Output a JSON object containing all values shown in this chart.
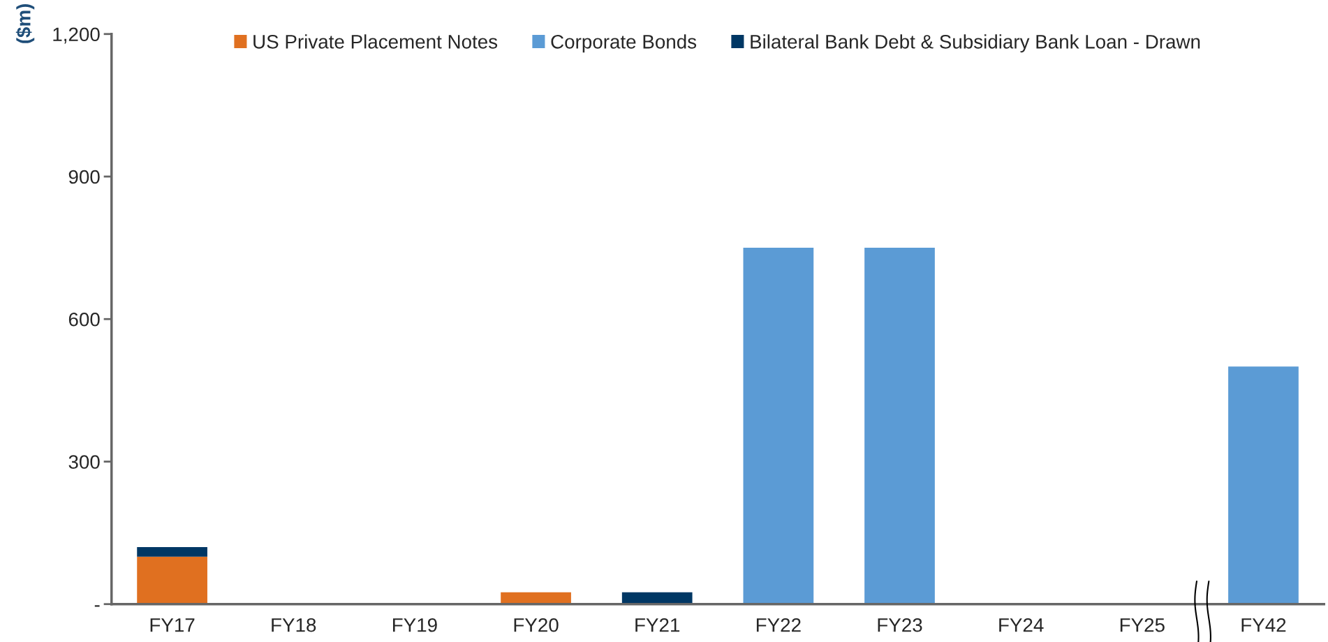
{
  "chart_data": {
    "type": "bar",
    "stacked": true,
    "ylabel": "($m)",
    "categories": [
      "FY17",
      "FY18",
      "FY19",
      "FY20",
      "FY21",
      "FY22",
      "FY23",
      "FY24",
      "FY25",
      "FY42"
    ],
    "series": [
      {
        "name": "US Private Placement Notes",
        "color": "#e07020",
        "values": [
          100,
          null,
          null,
          25,
          null,
          null,
          null,
          null,
          null,
          null
        ]
      },
      {
        "name": "Corporate Bonds",
        "color": "#5b9bd5",
        "values": [
          null,
          null,
          null,
          null,
          null,
          750,
          750,
          null,
          null,
          500
        ]
      },
      {
        "name": "Bilateral Bank Debt & Subsidiary Bank Loan - Drawn",
        "color": "#003764",
        "values": [
          20,
          null,
          null,
          null,
          25,
          null,
          null,
          null,
          null,
          null
        ]
      }
    ],
    "ylim": [
      0,
      1200
    ],
    "yticks": [
      {
        "value": 0,
        "label": "-"
      },
      300,
      600,
      900,
      {
        "value": 1200,
        "label": "1,200"
      }
    ],
    "grid": false,
    "legend": "top"
  }
}
